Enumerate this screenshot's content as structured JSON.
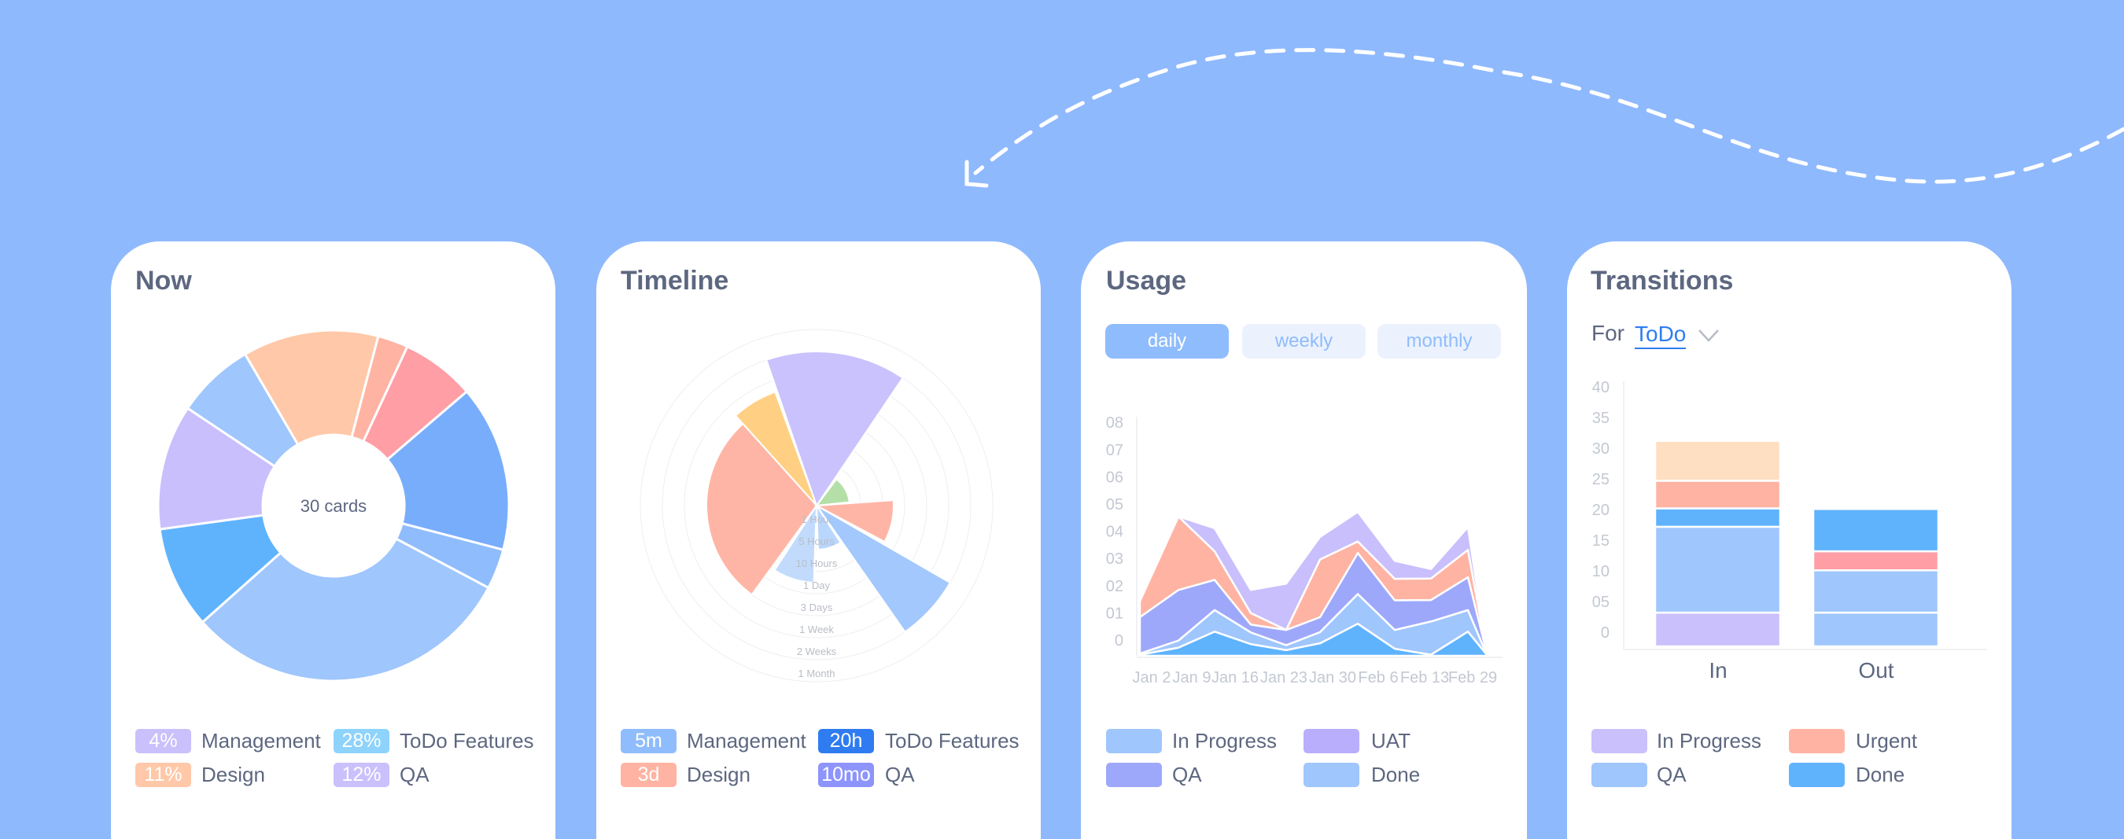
{
  "colors": {
    "background": "#8fb9fd",
    "accent": "#2f7cf0",
    "title": "#5d6780"
  },
  "now": {
    "title": "Now",
    "center_label": "30 cards",
    "legend": [
      {
        "badge": "4%",
        "label": "Management",
        "color": "#c9c0fc"
      },
      {
        "badge": "28%",
        "label": "ToDo Features",
        "color": "#8ed3fb"
      },
      {
        "badge": "11%",
        "label": "Design",
        "color": "#ffc8a8"
      },
      {
        "badge": "12%",
        "label": "QA",
        "color": "#c9c0fc"
      }
    ]
  },
  "timeline": {
    "title": "Timeline",
    "legend": [
      {
        "badge": "5m",
        "label": "Management",
        "color": "#8fbcfc"
      },
      {
        "badge": "20h",
        "label": "ToDo Features",
        "color": "#2f7cf0"
      },
      {
        "badge": "3d",
        "label": "Design",
        "color": "#ffb3a3"
      },
      {
        "badge": "10mo",
        "label": "QA",
        "color": "#8d94fb"
      }
    ]
  },
  "usage": {
    "title": "Usage",
    "tabs": [
      {
        "label": "daily",
        "active": true
      },
      {
        "label": "weekly",
        "active": false
      },
      {
        "label": "monthly",
        "active": false
      }
    ],
    "legend": [
      {
        "label": "In Progress",
        "color": "#9fc6fd"
      },
      {
        "label": "UAT",
        "color": "#b8aefc"
      },
      {
        "label": "QA",
        "color": "#9ea8fb"
      },
      {
        "label": "Done",
        "color": "#9fc6fd"
      }
    ]
  },
  "transitions": {
    "title": "Transitions",
    "for_label": "For",
    "filter_value": "ToDo",
    "legend": [
      {
        "label": "In Progress",
        "color": "#c9c0fc"
      },
      {
        "label": "Urgent",
        "color": "#ffb3a3"
      },
      {
        "label": "QA",
        "color": "#9fc6fd"
      },
      {
        "label": "Done",
        "color": "#5fb3fd"
      }
    ]
  },
  "chart_data": [
    {
      "type": "pie",
      "subtype": "donut",
      "total_label": "30 cards",
      "values": [
        12.5,
        2.8,
        6.8,
        15.3,
        3.7,
        30.6,
        9.4,
        11.5,
        7.2
      ],
      "colors": [
        "#ffc8a8",
        "#ffb3a3",
        "#ff9ea5",
        "#78adfc",
        "#8fbcfc",
        "#9fc6fd",
        "#5fb3fd",
        "#c9bffc",
        "#9fc6fd"
      ]
    },
    {
      "type": "bar",
      "subtype": "polar",
      "ring_labels": [
        "1 Hour",
        "5 Hours",
        "10 Hours",
        "1 Day",
        "3 Days",
        "1 Week",
        "2 Weeks",
        "1 Month"
      ],
      "values": [
        7,
        5.5,
        5,
        1.5,
        3.5,
        7,
        2,
        3.5
      ],
      "colors": [
        "#c9c2fc",
        "#ffd083",
        "#ffb5a5",
        "#b4e0a8",
        "#ffb5a5",
        "#a2c8fd",
        "#b9d6fd",
        "#c2dbfd"
      ]
    },
    {
      "type": "area",
      "stacked": true,
      "x_tick_labels": [
        "Jan 2",
        "Jan 9",
        "Jan 16",
        "Jan 23",
        "Jan 30",
        "Feb 6",
        "Feb 13",
        "Feb 29"
      ],
      "y_tick_labels": [
        "0",
        "01",
        "02",
        "03",
        "04",
        "05",
        "06",
        "07",
        "08"
      ],
      "ylim": [
        0,
        8
      ],
      "series": [
        {
          "name": "Done",
          "color": "#5fb3fd",
          "values": [
            0.04,
            0.3,
            0.89,
            0.43,
            0.21,
            0.46,
            1.18,
            0.26,
            0.04,
            0.89,
            0.04
          ]
        },
        {
          "name": "In Progress",
          "color": "#9fc6fd",
          "values": [
            0.04,
            0.26,
            0.79,
            0.43,
            0.18,
            0.41,
            1.09,
            0.69,
            1.22,
            0.79,
            0
          ]
        },
        {
          "name": "QA",
          "color": "#9ea8fb",
          "values": [
            1.34,
            1.86,
            1.11,
            0.29,
            0.56,
            0.55,
            1.51,
            1.09,
            0.79,
            1.21,
            0.07
          ]
        },
        {
          "color": "#ffb3a3",
          "values": [
            0.59,
            2.7,
            1.05,
            0.42,
            0,
            2.12,
            0.42,
            0.79,
            0.79,
            1.0,
            0
          ]
        },
        {
          "name": "UAT",
          "color": "#c9bffc",
          "values": [
            0,
            0,
            0.85,
            0.85,
            1.7,
            0.83,
            1.09,
            0.66,
            0.35,
            0.84,
            0
          ]
        }
      ]
    },
    {
      "type": "bar",
      "stacked": true,
      "categories": [
        "In",
        "Out"
      ],
      "y_tick_labels": [
        "0",
        "05",
        "10",
        "15",
        "20",
        "25",
        "30",
        "35",
        "40"
      ],
      "ylim": [
        0,
        40
      ],
      "stacks": [
        [
          {
            "series": "In Progress",
            "value": 5.5,
            "color": "#c9c0fc"
          },
          {
            "series": "QA",
            "value": 14,
            "color": "#9fc6fd"
          },
          {
            "series": "Done",
            "value": 3,
            "color": "#5fb3fd"
          },
          {
            "series": "Urgent",
            "value": 4.5,
            "color": "#ffb3a3"
          },
          {
            "value": 6.5,
            "color": "#ffdfc2"
          }
        ],
        [
          {
            "series": "QA",
            "value": 5.5,
            "color": "#9fc6fd"
          },
          {
            "series": "QA",
            "value": 6.9,
            "color": "#9fc6fd"
          },
          {
            "series": "Urgent",
            "value": 3.1,
            "color": "#ff9ea5"
          },
          {
            "series": "Done",
            "value": 6.9,
            "color": "#5fb3fd"
          }
        ]
      ]
    }
  ]
}
